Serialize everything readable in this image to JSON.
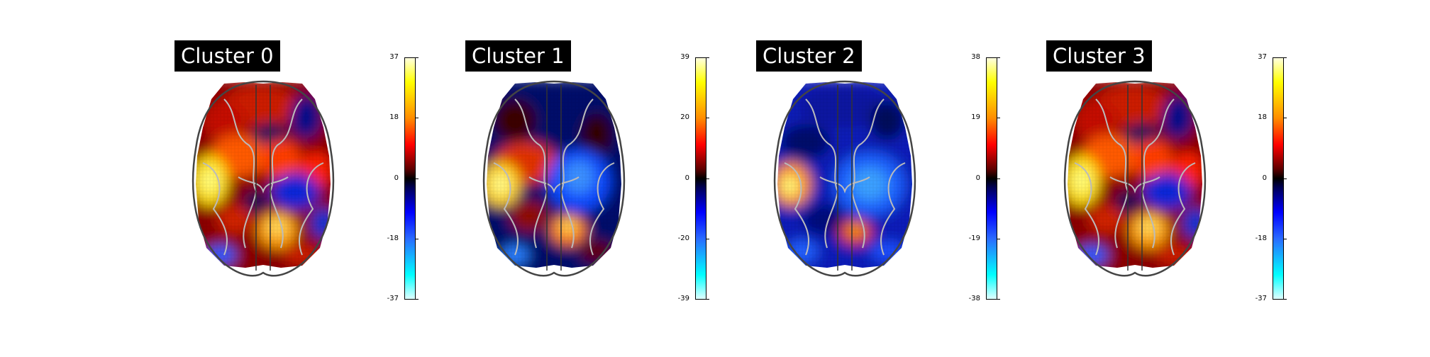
{
  "panels": [
    {
      "title": "Cluster 0",
      "ticks": [
        "37",
        "18",
        "0",
        "-18",
        "-37"
      ],
      "pattern": "c0"
    },
    {
      "title": "Cluster 1",
      "ticks": [
        "39",
        "20",
        "0",
        "-20",
        "-39"
      ],
      "pattern": "c1"
    },
    {
      "title": "Cluster 2",
      "ticks": [
        "38",
        "19",
        "0",
        "-19",
        "-38"
      ],
      "pattern": "c2"
    },
    {
      "title": "Cluster 3",
      "ticks": [
        "37",
        "18",
        "0",
        "-18",
        "-37"
      ],
      "pattern": "c0"
    }
  ],
  "colormap": [
    "#e0ffff",
    "#00ffff",
    "#0000ff",
    "#000000",
    "#ff0000",
    "#ff8c00",
    "#ffff00",
    "#ffffe0"
  ]
}
